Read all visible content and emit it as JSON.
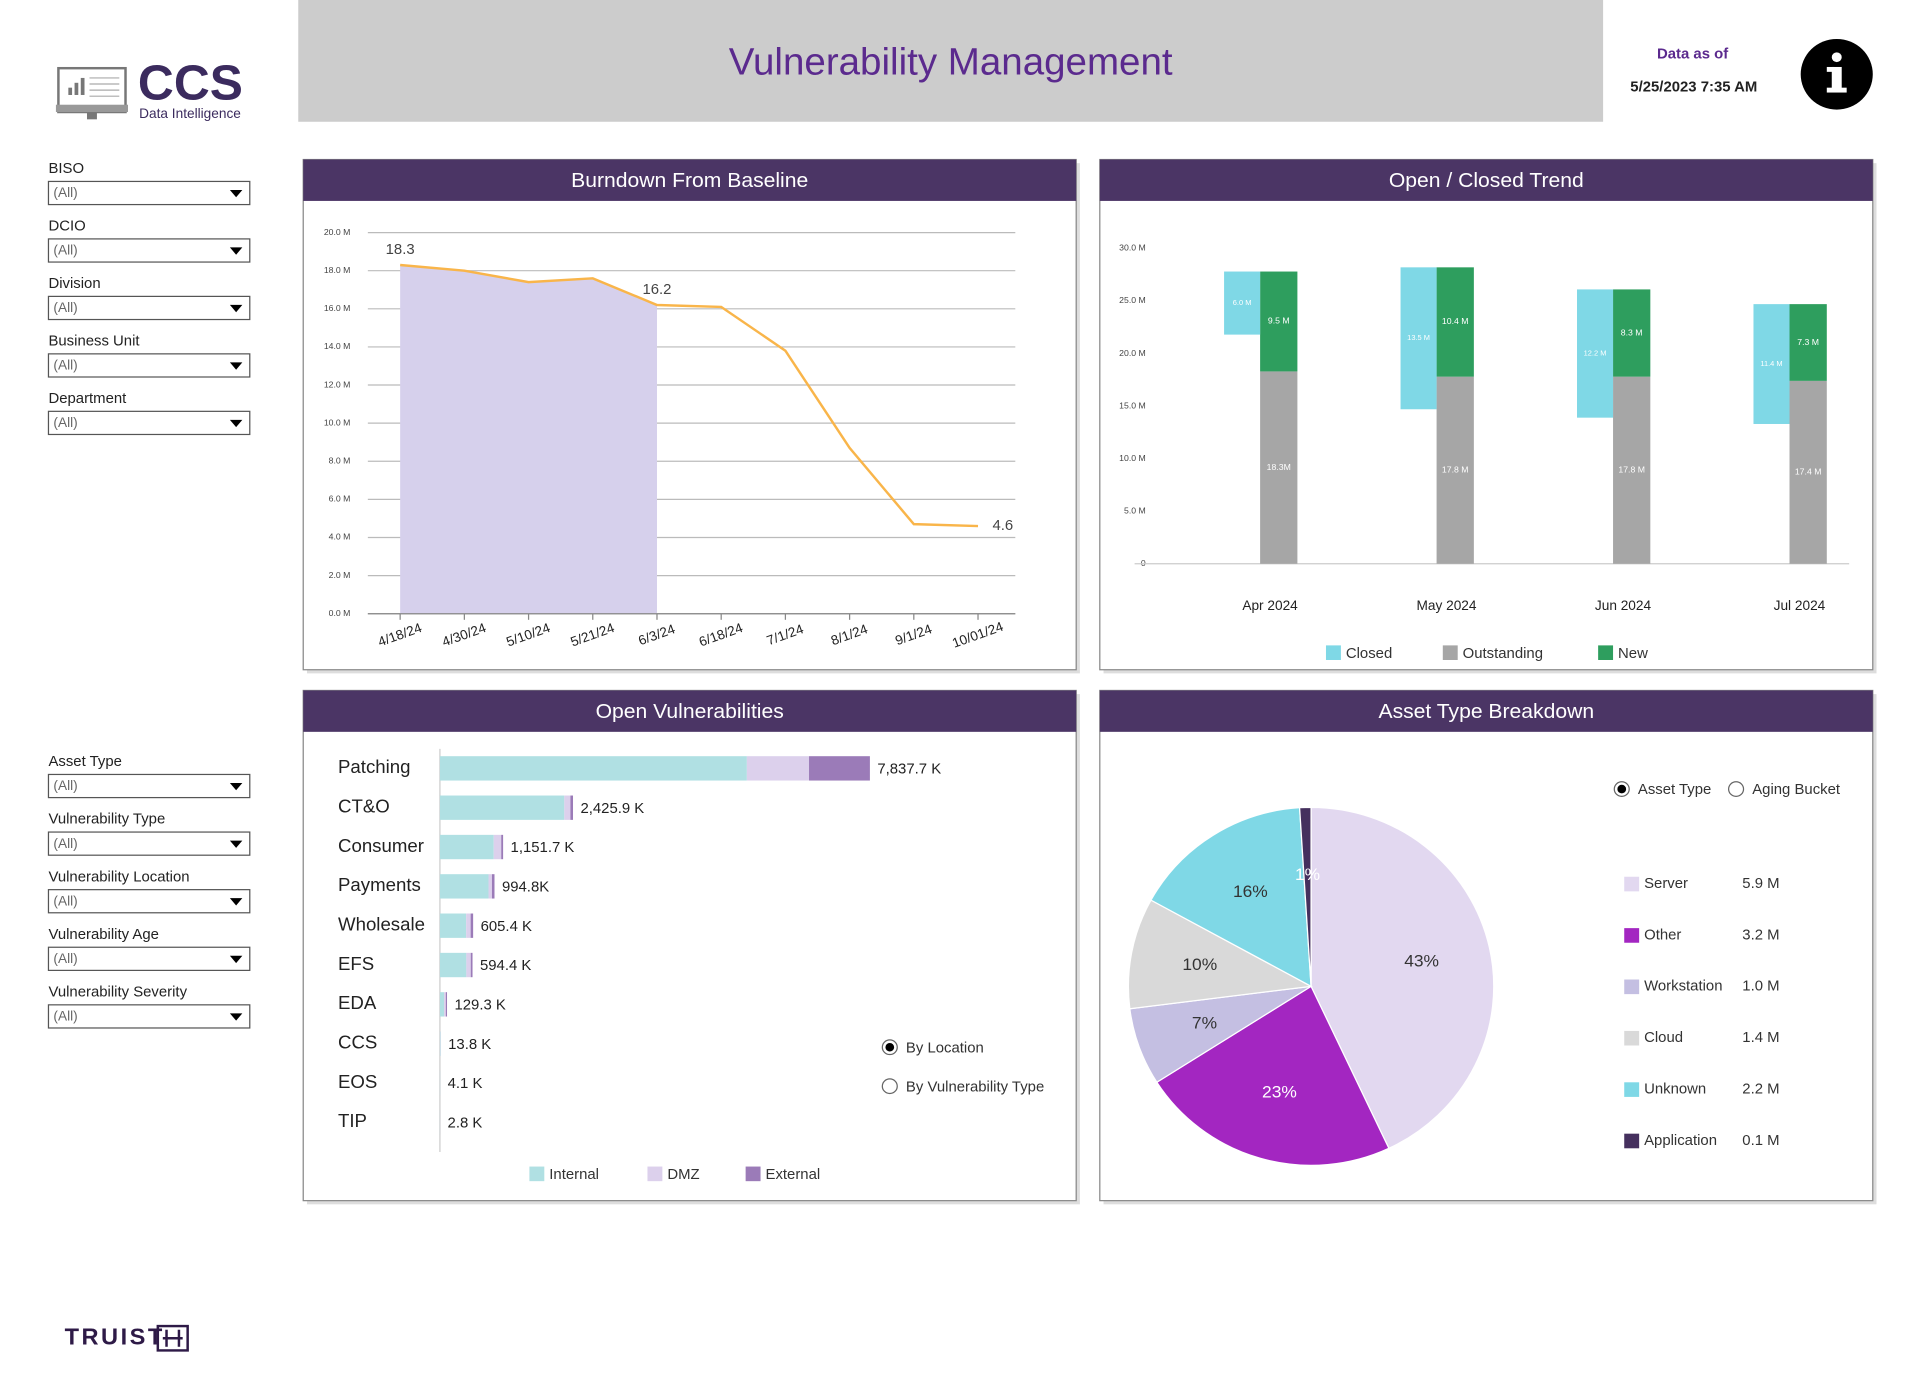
{
  "header": {
    "title": "Vulnerability Management",
    "logo": "CCS",
    "logo_sub": "Data Intelligence",
    "data_as_of_label": "Data as of",
    "data_as_of": "5/25/2023 7:35 AM",
    "footer_brand": "TRUIST"
  },
  "filters": [
    {
      "label": "BISO",
      "value": "(All)"
    },
    {
      "label": "DCIO",
      "value": "(All)"
    },
    {
      "label": "Division",
      "value": "(All)"
    },
    {
      "label": "Business Unit",
      "value": "(All)"
    },
    {
      "label": "Department",
      "value": "(All)"
    },
    {
      "label": "Asset Type",
      "value": "(All)"
    },
    {
      "label": "Vulnerability Type",
      "value": "(All)"
    },
    {
      "label": "Vulnerability Location",
      "value": "(All)"
    },
    {
      "label": "Vulnerability Age",
      "value": "(All)"
    },
    {
      "label": "Vulnerability Severity",
      "value": "(All)"
    }
  ],
  "chart_data": [
    {
      "type": "line",
      "title": "Burndown From Baseline",
      "categories": [
        "4/18/24",
        "4/30/24",
        "5/10/24",
        "5/21/24",
        "6/3/24",
        "6/18/24",
        "7/1/24",
        "8/1/24",
        "9/1/24",
        "10/01/24"
      ],
      "series": [
        {
          "type": "line",
          "color": "#f9b54a",
          "values": [
            18.3,
            18.0,
            17.4,
            17.6,
            16.2,
            16.1,
            13.8,
            8.7,
            4.7,
            4.6
          ],
          "value_labels": [
            "18.3",
            null,
            null,
            null,
            "16.2",
            null,
            null,
            null,
            null,
            "4.6"
          ]
        },
        {
          "type": "area",
          "color": "#d6d0ec",
          "values": [
            18.3,
            18.0,
            17.4,
            17.6,
            16.2,
            null,
            null,
            null,
            null,
            null
          ]
        }
      ],
      "ylim": [
        0,
        20
      ],
      "yticks": [
        {
          "value": 0,
          "label": "0.0 M"
        },
        {
          "value": 2,
          "label": "2.0 M"
        },
        {
          "value": 4,
          "label": "4.0 M"
        },
        {
          "value": 6,
          "label": "6.0 M"
        },
        {
          "value": 8,
          "label": "8.0 M"
        },
        {
          "value": 10,
          "label": "10.0 M"
        },
        {
          "value": 12,
          "label": "12.0 M"
        },
        {
          "value": 14,
          "label": "14.0 M"
        },
        {
          "value": 16,
          "label": "16.0 M"
        },
        {
          "value": 18,
          "label": "18.0 M"
        },
        {
          "value": 20,
          "label": "20.0 M"
        }
      ],
      "grid": true
    },
    {
      "type": "waterfall",
      "title": "Open / Closed Trend",
      "categories": [
        "Apr 2024",
        "May 2024",
        "Jun 2024",
        "Jul 2024"
      ],
      "series": [
        {
          "name": "Closed",
          "color": "#7fd8e6",
          "values": [
            6.0,
            13.5,
            12.2,
            11.4
          ],
          "value_labels": [
            "6.0 M",
            "13.5 M",
            "12.2 M",
            "11.4 M"
          ]
        },
        {
          "name": "Outstanding",
          "color": "#a6a6a6",
          "values": [
            18.3,
            17.8,
            17.8,
            17.4
          ],
          "value_labels": [
            "18.3M",
            "17.8 M",
            "17.8 M",
            "17.4 M"
          ]
        },
        {
          "name": "New",
          "color": "#2e9e5e",
          "values": [
            9.5,
            10.4,
            8.3,
            7.3
          ],
          "value_labels": [
            "9.5 M",
            "10.4 M",
            "8.3 M",
            "7.3 M"
          ]
        }
      ],
      "ylim": [
        0,
        30
      ],
      "yticks": [
        0,
        {
          "value": 5,
          "label": "5.0 M"
        },
        {
          "value": 10,
          "label": "10.0 M"
        },
        {
          "value": 15,
          "label": "15.0 M"
        },
        {
          "value": 20,
          "label": "20.0 M"
        },
        {
          "value": 25,
          "label": "25.0 M"
        },
        {
          "value": 30,
          "label": "30.0 M"
        }
      ],
      "legend": "bottom"
    },
    {
      "type": "hbar",
      "title": "Open Vulnerabilities",
      "categories": [
        "Patching",
        "CT&O",
        "Consumer",
        "Payments",
        "Wholesale",
        "EFS",
        "EDA",
        "CCS",
        "EOS",
        "TIP"
      ],
      "series": [
        {
          "name": "Internal",
          "color": "#b0e0e3",
          "values": [
            5595.0,
            2267.3,
            980.6,
            886.0,
            478.0,
            481.9,
            75.4,
            9.8,
            3.0,
            2.0
          ]
        },
        {
          "name": "DMZ",
          "color": "#dcd0ec",
          "values": [
            1133.0,
            111.0,
            136.8,
            62.2,
            82.0,
            80.3,
            32.3,
            3.0,
            0.8,
            0.5
          ]
        },
        {
          "name": "External",
          "color": "#9b7bb8",
          "values": [
            1109.7,
            47.6,
            34.3,
            46.6,
            45.4,
            32.2,
            21.6,
            1.0,
            0.3,
            0.3
          ]
        }
      ],
      "totals": [
        7837.7,
        2425.9,
        1151.7,
        994.8,
        605.4,
        594.4,
        129.3,
        13.8,
        4.1,
        2.8
      ],
      "total_labels": [
        "7,837.7 K",
        "2,425.9 K",
        "1,151.7 K",
        "994.8K",
        "605.4 K",
        "594.4 K",
        "129.3 K",
        "13.8 K",
        "4.1 K",
        "2.8 K"
      ],
      "options": [
        "By Location",
        "By Vulnerability Type"
      ],
      "selected_option": 0,
      "legend": "bottom"
    },
    {
      "type": "pie",
      "title": "Asset Type Breakdown",
      "categories": [
        "Server",
        "Other",
        "Workstation",
        "Cloud",
        "Unknown",
        "Application"
      ],
      "values": [
        43,
        23,
        7,
        10,
        16,
        1
      ],
      "value_labels": [
        "43%",
        "23%",
        "7%",
        "10%",
        "16%",
        "1%"
      ],
      "colors": [
        "#e2d8f0",
        "#a326c1",
        "#c4bfe2",
        "#d9d9d9",
        "#7fd8e6",
        "#45305e"
      ],
      "amounts": [
        5.9,
        3.2,
        1.0,
        1.4,
        2.2,
        0.1
      ],
      "amount_labels": [
        "5.9 M",
        "3.2 M",
        "1.0 M",
        "1.4 M",
        "2.2 M",
        "0.1 M"
      ],
      "options": [
        "Asset Type",
        "Aging Bucket"
      ],
      "selected_option": 0,
      "legend": "right"
    }
  ]
}
